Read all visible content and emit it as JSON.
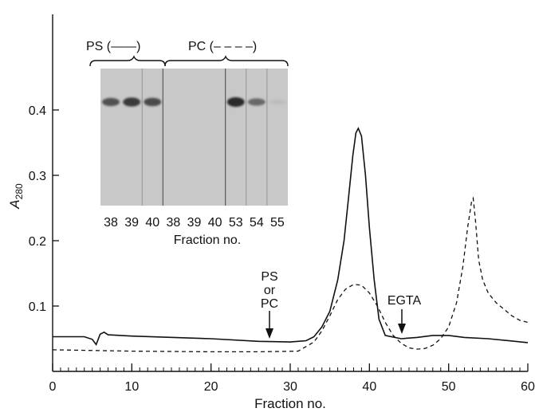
{
  "colors": {
    "ink": "#111111",
    "gel_bg": "#c8c8c8",
    "band": "#2a2a2a"
  },
  "chart_data": {
    "type": "line",
    "xlabel": "Fraction no.",
    "ylabel_main": "A",
    "ylabel_sub": "280",
    "xlim": [
      0,
      60
    ],
    "ylim": [
      0,
      0.45
    ],
    "x_ticks": [
      "0",
      "10",
      "20",
      "30",
      "40",
      "50",
      "60"
    ],
    "y_ticks": [
      "0.1",
      "0.2",
      "0.3",
      "0.4"
    ],
    "x_tick_values": [
      0,
      10,
      20,
      30,
      40,
      50,
      60
    ],
    "y_tick_values": [
      0.1,
      0.2,
      0.3,
      0.4
    ],
    "series": [
      {
        "name": "PS",
        "style": "solid",
        "points": [
          [
            0,
            0.053
          ],
          [
            4,
            0.053
          ],
          [
            5,
            0.049
          ],
          [
            5.5,
            0.041
          ],
          [
            6,
            0.057
          ],
          [
            6.5,
            0.06
          ],
          [
            7,
            0.056
          ],
          [
            10,
            0.054
          ],
          [
            20,
            0.05
          ],
          [
            26,
            0.046
          ],
          [
            30,
            0.045
          ],
          [
            32,
            0.047
          ],
          [
            33,
            0.053
          ],
          [
            34,
            0.068
          ],
          [
            35,
            0.092
          ],
          [
            36,
            0.14
          ],
          [
            36.8,
            0.2
          ],
          [
            37.4,
            0.27
          ],
          [
            37.9,
            0.33
          ],
          [
            38.3,
            0.365
          ],
          [
            38.6,
            0.372
          ],
          [
            39,
            0.36
          ],
          [
            39.5,
            0.3
          ],
          [
            40,
            0.22
          ],
          [
            40.6,
            0.14
          ],
          [
            41.2,
            0.08
          ],
          [
            42,
            0.055
          ],
          [
            44,
            0.05
          ],
          [
            46,
            0.052
          ],
          [
            48,
            0.055
          ],
          [
            50,
            0.055
          ],
          [
            52,
            0.052
          ],
          [
            55,
            0.05
          ],
          [
            60,
            0.044
          ]
        ]
      },
      {
        "name": "PC",
        "style": "dashed",
        "points": [
          [
            0,
            0.033
          ],
          [
            10,
            0.031
          ],
          [
            20,
            0.03
          ],
          [
            26,
            0.03
          ],
          [
            31,
            0.031
          ],
          [
            33,
            0.045
          ],
          [
            34,
            0.062
          ],
          [
            35,
            0.085
          ],
          [
            36,
            0.11
          ],
          [
            37,
            0.126
          ],
          [
            38,
            0.133
          ],
          [
            39,
            0.132
          ],
          [
            40,
            0.12
          ],
          [
            41,
            0.1
          ],
          [
            42,
            0.075
          ],
          [
            43,
            0.055
          ],
          [
            44,
            0.043
          ],
          [
            45,
            0.036
          ],
          [
            46,
            0.034
          ],
          [
            47,
            0.035
          ],
          [
            48,
            0.04
          ],
          [
            49,
            0.05
          ],
          [
            50,
            0.068
          ],
          [
            51,
            0.105
          ],
          [
            51.8,
            0.16
          ],
          [
            52.4,
            0.22
          ],
          [
            52.9,
            0.26
          ],
          [
            53.1,
            0.265
          ],
          [
            53.4,
            0.23
          ],
          [
            53.8,
            0.17
          ],
          [
            54.3,
            0.14
          ],
          [
            55,
            0.12
          ],
          [
            56,
            0.105
          ],
          [
            57,
            0.095
          ],
          [
            58,
            0.085
          ],
          [
            59,
            0.078
          ],
          [
            60,
            0.075
          ]
        ]
      }
    ],
    "annotations": {
      "add_line1": "PS",
      "add_line2": "or",
      "add_line3": "PC",
      "add_at": 26.5,
      "egta": "EGTA",
      "egta_at": 44
    },
    "inset": {
      "ps_label": "PS (——)",
      "pc_label": "PC (– – – –)",
      "lane_labels": [
        "38",
        "39",
        "40",
        "38",
        "39",
        "40",
        "53",
        "54",
        "55"
      ],
      "band_intensity": [
        0.75,
        0.9,
        0.8,
        0,
        0,
        0,
        1.0,
        0.6,
        0.08
      ],
      "xlabel": "Fraction no."
    }
  }
}
